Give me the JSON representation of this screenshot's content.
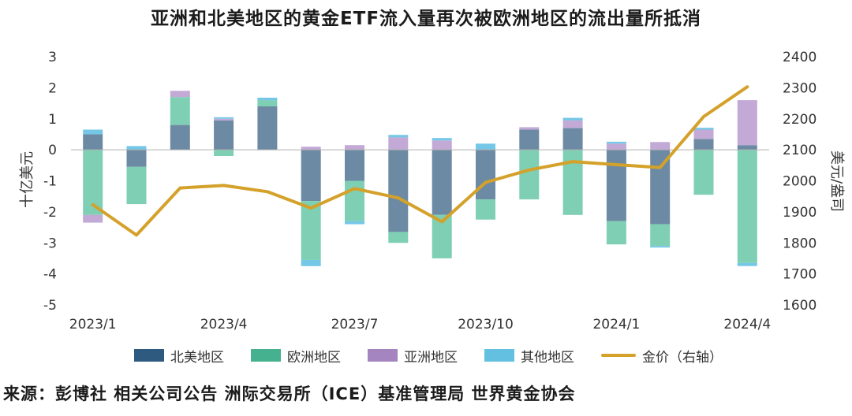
{
  "title": "亚洲和北美地区的黄金ETF流入量再次被欧洲地区的流出量所抵消",
  "source": "来源：彭博社 相关公司公告 洲际交易所（ICE）基准管理局 世界黄金协会",
  "chart_data": {
    "type": "bar",
    "stacked": true,
    "x": [
      "2023/1",
      "2023/2",
      "2023/3",
      "2023/4",
      "2023/5",
      "2023/6",
      "2023/7",
      "2023/8",
      "2023/9",
      "2023/10",
      "2023/11",
      "2023/12",
      "2024/1",
      "2024/2",
      "2024/3",
      "2024/4"
    ],
    "x_tick_labels": [
      "2023/1",
      "2023/4",
      "2023/7",
      "2023/10",
      "2024/1",
      "2024/4"
    ],
    "ylabel": "十亿美元",
    "y2label": "美元/盎司",
    "ylim": [
      -5,
      3
    ],
    "y_ticks": [
      3,
      2,
      1,
      0,
      -1,
      -2,
      -3,
      -4,
      -5
    ],
    "y2lim": [
      1600,
      2400
    ],
    "y2_ticks": [
      2400,
      2300,
      2200,
      2100,
      2000,
      1900,
      1800,
      1700,
      1600
    ],
    "grid": false,
    "legend_position": "bottom",
    "series": [
      {
        "name": "北美地区",
        "color": "#2e5a7f",
        "values": [
          0.5,
          -0.55,
          0.8,
          0.95,
          1.4,
          -1.65,
          -1.0,
          -2.65,
          -2.1,
          -1.6,
          0.65,
          0.7,
          -2.3,
          -2.4,
          0.35,
          0.15
        ]
      },
      {
        "name": "欧洲地区",
        "color": "#5bbf9f",
        "values": [
          -2.1,
          -1.2,
          0.9,
          -0.2,
          0.2,
          -1.9,
          -1.3,
          -0.35,
          -1.4,
          -0.65,
          -1.6,
          -2.1,
          -0.75,
          -0.7,
          -1.45,
          -3.65
        ]
      },
      {
        "name": "亚洲地区",
        "color": "#b9a0cc",
        "values": [
          -0.25,
          0.0,
          0.2,
          0.05,
          0.0,
          0.1,
          0.15,
          0.4,
          0.3,
          0.0,
          0.08,
          0.25,
          0.2,
          0.25,
          0.3,
          1.45
        ]
      },
      {
        "name": "其他地区",
        "color": "#63c0e0",
        "values": [
          0.15,
          0.12,
          0.0,
          0.05,
          0.08,
          -0.2,
          -0.1,
          0.08,
          0.08,
          0.2,
          0.0,
          0.08,
          0.06,
          -0.05,
          0.06,
          -0.1
        ]
      },
      {
        "name": "金价（右轴）",
        "color": "#d4a12a",
        "type": "line",
        "axis": "right",
        "values": [
          1923,
          1825,
          1977,
          1985,
          1965,
          1912,
          1975,
          1945,
          1868,
          1995,
          2035,
          2062,
          2052,
          2043,
          2207,
          2303
        ]
      }
    ]
  }
}
